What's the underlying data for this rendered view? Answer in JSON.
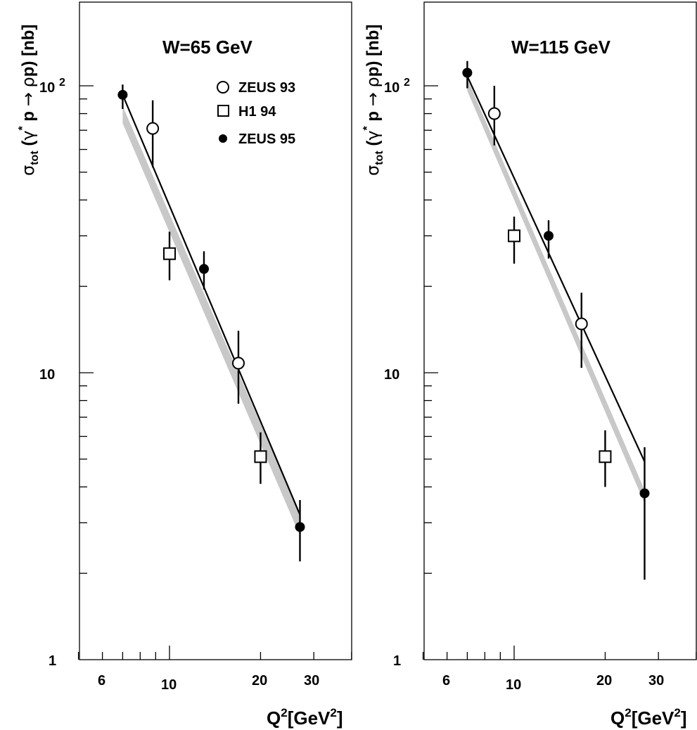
{
  "chart_data": [
    {
      "type": "scatter",
      "title": "W=65 GeV",
      "xlabel": "Q2[GeV2]",
      "ylabel": "σtot (γ* p → ρp) [nb]",
      "xscale": "log",
      "yscale": "log",
      "xlim": [
        4.5,
        45
      ],
      "ylim": [
        1,
        220
      ],
      "x_tick_labels": [
        "6",
        "10",
        "20",
        "30"
      ],
      "y_tick_labels": [
        "1",
        "10",
        "10 2"
      ],
      "legend": {
        "placement": "top-right",
        "entries": [
          "ZEUS 93",
          "H1 94",
          "ZEUS 95"
        ]
      },
      "series": [
        {
          "name": "ZEUS 93",
          "marker": "open-circle",
          "x": [
            8.8,
            16.9
          ],
          "y": [
            71,
            10.8
          ],
          "err_low": [
            52,
            7.8
          ],
          "err_high": [
            89,
            14
          ]
        },
        {
          "name": "H1 94",
          "marker": "open-square",
          "x": [
            10,
            20
          ],
          "y": [
            26,
            5.1
          ],
          "err_low": [
            21,
            4.1
          ],
          "err_high": [
            31,
            6.2
          ]
        },
        {
          "name": "ZEUS 95",
          "marker": "filled-circle",
          "x": [
            7.0,
            13.0,
            27.0
          ],
          "y": [
            93,
            23,
            2.9
          ],
          "err_low": [
            83,
            19.5,
            2.2
          ],
          "err_high": [
            101,
            26.5,
            3.6
          ]
        }
      ],
      "fit_line": {
        "x": [
          7.0,
          27.0
        ],
        "y": [
          93,
          3.2
        ]
      },
      "error_band": {
        "x": [
          7.0,
          27.0
        ],
        "y_low": [
          74,
          2.7
        ],
        "y_high": [
          85,
          3.2
        ]
      }
    },
    {
      "type": "scatter",
      "title": "W=115 GeV",
      "xlabel": "Q2[GeV2]",
      "ylabel": "σtot (γ* p → ρp) [nb]",
      "xscale": "log",
      "yscale": "log",
      "xlim": [
        4.5,
        45
      ],
      "ylim": [
        1,
        220
      ],
      "x_tick_labels": [
        "6",
        "10",
        "20",
        "30"
      ],
      "y_tick_labels": [
        "1",
        "10",
        "10 2"
      ],
      "series": [
        {
          "name": "ZEUS 93",
          "x": [
            8.6,
            16.7
          ],
          "y": [
            80,
            14.8
          ],
          "err_low": [
            62,
            10.4
          ],
          "err_high": [
            100,
            19
          ]
        },
        {
          "name": "H1 94",
          "x": [
            10,
            20
          ],
          "y": [
            30,
            5.1
          ],
          "err_low": [
            24,
            4
          ],
          "err_high": [
            35,
            6.3
          ]
        },
        {
          "name": "ZEUS 95",
          "x": [
            7.0,
            13.0,
            27.0
          ],
          "y": [
            111,
            30,
            3.8
          ],
          "err_low": [
            98,
            25,
            1.9
          ],
          "err_high": [
            122,
            34,
            5.5
          ]
        }
      ],
      "fit_line": {
        "x": [
          7.0,
          27.0
        ],
        "y": [
          108,
          4.9
        ]
      },
      "error_band": {
        "x": [
          7.0,
          27.0
        ],
        "y_low": [
          96,
          3.5
        ],
        "y_high": [
          106,
          3.9
        ]
      }
    }
  ]
}
